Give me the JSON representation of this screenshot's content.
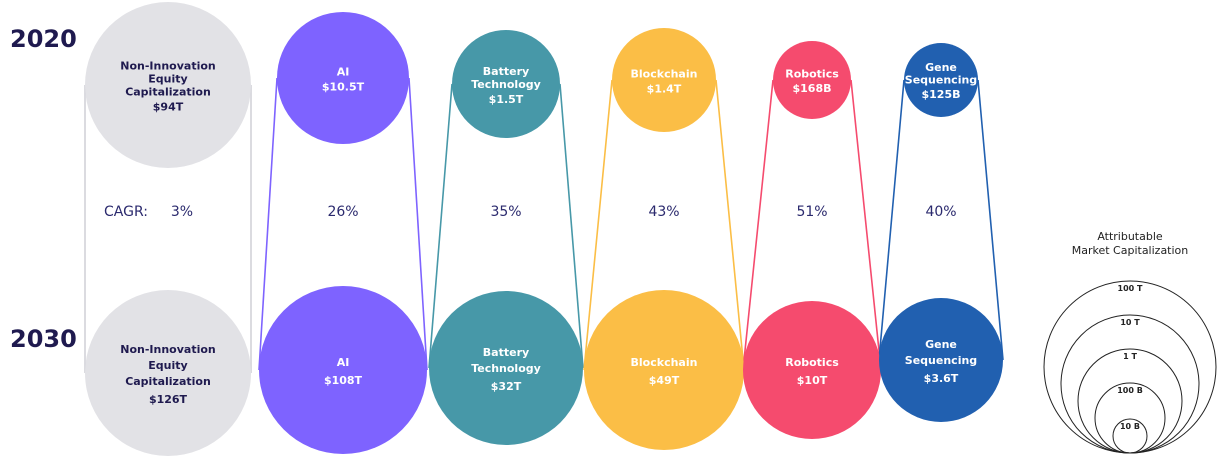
{
  "chart_data": {
    "type": "bubble",
    "years": [
      "2020",
      "2030"
    ],
    "cagr_label": "CAGR:",
    "series": [
      {
        "label_lines": [
          "Non-Innovation",
          "Equity",
          "Capitalization"
        ],
        "value_2020": "$94T",
        "value_2030": "$126T",
        "cagr": "3%",
        "color": "#e2e2e6",
        "text_color": "#1f1a4f"
      },
      {
        "label_lines": [
          "AI"
        ],
        "value_2020": "$10.5T",
        "value_2030": "$108T",
        "cagr": "26%",
        "color": "#7e63ff",
        "text_color": "#ffffff"
      },
      {
        "label_lines": [
          "Battery",
          "Technology"
        ],
        "value_2020": "$1.5T",
        "value_2030": "$32T",
        "cagr": "35%",
        "color": "#4798a8",
        "text_color": "#ffffff"
      },
      {
        "label_lines": [
          "Blockchain"
        ],
        "value_2020": "$1.4T",
        "value_2030": "$49T",
        "cagr": "43%",
        "color": "#fbbe46",
        "text_color": "#ffffff"
      },
      {
        "label_lines": [
          "Robotics"
        ],
        "value_2020": "$168B",
        "value_2030": "$10T",
        "cagr": "51%",
        "color": "#f54b6e",
        "text_color": "#ffffff"
      },
      {
        "label_lines": [
          "Gene",
          "Sequencing"
        ],
        "value_2020": "$125B",
        "value_2030": "$3.6T",
        "cagr": "40%",
        "color": "#2160b0",
        "text_color": "#ffffff"
      }
    ],
    "legend": {
      "title_lines": [
        "Attributable",
        "Market Capitalization"
      ],
      "rings": [
        "100 T",
        "10 T",
        "1 T",
        "100 B",
        "10 B"
      ]
    }
  }
}
